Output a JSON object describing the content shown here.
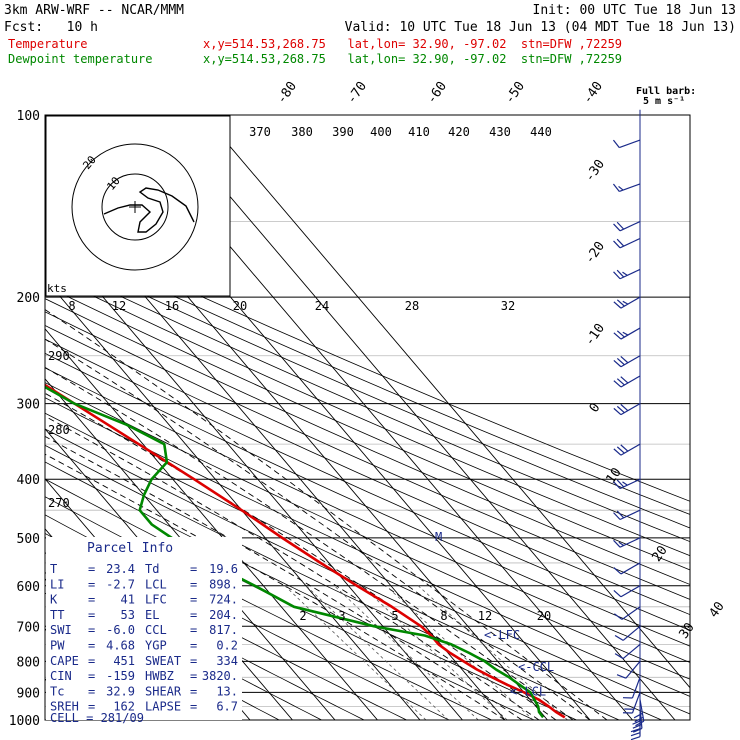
{
  "header": {
    "model": "3km ARW-WRF -- NCAR/MMM",
    "init": "Init: 00 UTC Tue 18 Jun 13",
    "fcst": "Fcst:   10 h",
    "valid": "Valid: 10 UTC Tue 18 Jun 13 (04 MDT Tue 18 Jun 13)",
    "series": [
      {
        "name": "Temperature",
        "info": "x,y=514.53,268.75   lat,lon= 32.90, -97.02  stn=DFW ,72259",
        "color": "#dd0000"
      },
      {
        "name": "Dewpoint temperature",
        "info": "x,y=514.53,268.75   lat,lon= 32.90, -97.02  stn=DFW ,72259",
        "color": "#008800"
      }
    ]
  },
  "barb_legend": {
    "line1": "Full barb:",
    "line2": "5 m s⁻¹"
  },
  "parcel_info": {
    "title": "Parcel Info",
    "rows": [
      {
        "l1": "T",
        "v1": "23.4",
        "l2": "Td",
        "v2": "19.6"
      },
      {
        "l1": "LI",
        "v1": "-2.7",
        "l2": "LCL",
        "v2": "898."
      },
      {
        "l1": "K",
        "v1": "41",
        "l2": "LFC",
        "v2": "724."
      },
      {
        "l1": "TT",
        "v1": "53",
        "l2": "EL",
        "v2": "204."
      },
      {
        "l1": "SWI",
        "v1": "-6.0",
        "l2": "CCL",
        "v2": "817."
      },
      {
        "l1": "PW",
        "v1": "4.68",
        "l2": "YGP",
        "v2": "0.2"
      },
      {
        "l1": "CAPE",
        "v1": "451",
        "l2": "SWEAT",
        "v2": "334"
      },
      {
        "l1": "CIN",
        "v1": "-159",
        "l2": "HWBZ",
        "v2": "3820."
      },
      {
        "l1": "Tc",
        "v1": "32.9",
        "l2": "SHEAR",
        "v2": "13."
      },
      {
        "l1": "SREH",
        "v1": "162",
        "l2": "LAPSE",
        "v2": "6.7"
      }
    ],
    "cell": "CELL = 281/09"
  },
  "hodograph": {
    "units": "kts",
    "rings": [
      "10",
      "20"
    ]
  },
  "chart_data": {
    "type": "line",
    "title": "",
    "xlabel": "",
    "ylabel": "",
    "y_scale": "log-pressure",
    "pressure_ticks": [
      "100",
      "200",
      "300",
      "400",
      "500",
      "600",
      "700",
      "800",
      "900",
      "1000"
    ],
    "isotherm_labels": [
      "-80",
      "-70",
      "-60",
      "-50",
      "-40",
      "-30",
      "-20",
      "-10",
      "0",
      "10",
      "20",
      "30",
      "40"
    ],
    "theta_labels": [
      "370",
      "380",
      "390",
      "400",
      "410",
      "420",
      "430",
      "440"
    ],
    "theta_side_labels": [
      "290",
      "280",
      "270"
    ],
    "theta_e_labels": [
      "8",
      "12",
      "16",
      "20",
      "24",
      "28",
      "32"
    ],
    "mixing_ratio_labels": [
      "2",
      "3",
      "5",
      "8",
      "12",
      "20"
    ],
    "levels": [
      {
        "name": "LFC",
        "label": "<-LFC",
        "p": 724
      },
      {
        "name": "CCL",
        "label": "<-CCL",
        "p": 817
      },
      {
        "name": "LCL",
        "label": "<-LCL",
        "p": 898
      }
    ],
    "series": [
      {
        "name": "Temperature",
        "color": "#dd0000",
        "p": [
          990,
          970,
          950,
          925,
          900,
          875,
          850,
          825,
          800,
          775,
          750,
          725,
          700,
          650,
          600,
          550,
          500,
          450,
          400,
          350,
          300,
          275,
          250,
          225,
          200,
          190,
          180,
          170,
          160,
          150,
          140,
          130,
          120,
          110,
          100
        ],
        "t": [
          24.6,
          23.6,
          23,
          22,
          20,
          17.6,
          15.5,
          13.5,
          12,
          10.5,
          9.5,
          9.5,
          9,
          6,
          2,
          -2,
          -6,
          -10,
          -15,
          -21,
          -28,
          -32,
          -36,
          -41,
          -48,
          -50,
          -51,
          -52,
          -54,
          -57,
          -59,
          -60,
          -61,
          -62,
          -62
        ]
      },
      {
        "name": "Dewpoint temperature",
        "color": "#008800",
        "p": [
          990,
          970,
          950,
          925,
          900,
          875,
          850,
          825,
          800,
          775,
          750,
          725,
          700,
          650,
          600,
          550,
          500,
          475,
          450,
          425,
          400,
          375,
          350,
          325,
          300,
          275,
          250,
          225,
          200,
          190,
          180,
          170,
          160,
          150,
          140,
          130,
          120,
          110,
          100
        ],
        "t": [
          19.5,
          19.6,
          20.5,
          21,
          21.5,
          20.5,
          19.5,
          18,
          17,
          15,
          12.5,
          8,
          -2,
          -17,
          -22,
          -28,
          -32,
          -34,
          -34,
          -30,
          -25,
          -18,
          -15,
          -20,
          -28,
          -33,
          -38,
          -44,
          -51,
          -54,
          -56,
          -60,
          -63,
          -65,
          -68,
          -70,
          -73,
          -76,
          -79
        ]
      }
    ],
    "wind_profile": [
      {
        "p": 980,
        "spd": 30,
        "dir": 180
      },
      {
        "p": 950,
        "spd": 30,
        "dir": 175
      },
      {
        "p": 925,
        "spd": 30,
        "dir": 170
      },
      {
        "p": 900,
        "spd": 20,
        "dir": 200
      },
      {
        "p": 850,
        "spd": 10,
        "dir": 200
      },
      {
        "p": 800,
        "spd": 10,
        "dir": 220
      },
      {
        "p": 750,
        "spd": 10,
        "dir": 230
      },
      {
        "p": 700,
        "spd": 10,
        "dir": 230
      },
      {
        "p": 650,
        "spd": 10,
        "dir": 235
      },
      {
        "p": 600,
        "spd": 10,
        "dir": 240
      },
      {
        "p": 550,
        "spd": 10,
        "dir": 240
      },
      {
        "p": 500,
        "spd": 15,
        "dir": 245
      },
      {
        "p": 450,
        "spd": 20,
        "dir": 245
      },
      {
        "p": 400,
        "spd": 25,
        "dir": 245
      },
      {
        "p": 350,
        "spd": 30,
        "dir": 240
      },
      {
        "p": 300,
        "spd": 30,
        "dir": 240
      },
      {
        "p": 270,
        "spd": 30,
        "dir": 240
      },
      {
        "p": 250,
        "spd": 30,
        "dir": 240
      },
      {
        "p": 225,
        "spd": 25,
        "dir": 240
      },
      {
        "p": 200,
        "spd": 25,
        "dir": 240
      },
      {
        "p": 180,
        "spd": 25,
        "dir": 245
      },
      {
        "p": 160,
        "spd": 20,
        "dir": 245
      },
      {
        "p": 150,
        "spd": 20,
        "dir": 245
      },
      {
        "p": 130,
        "spd": 15,
        "dir": 250
      },
      {
        "p": 110,
        "spd": 10,
        "dir": 250
      }
    ]
  }
}
